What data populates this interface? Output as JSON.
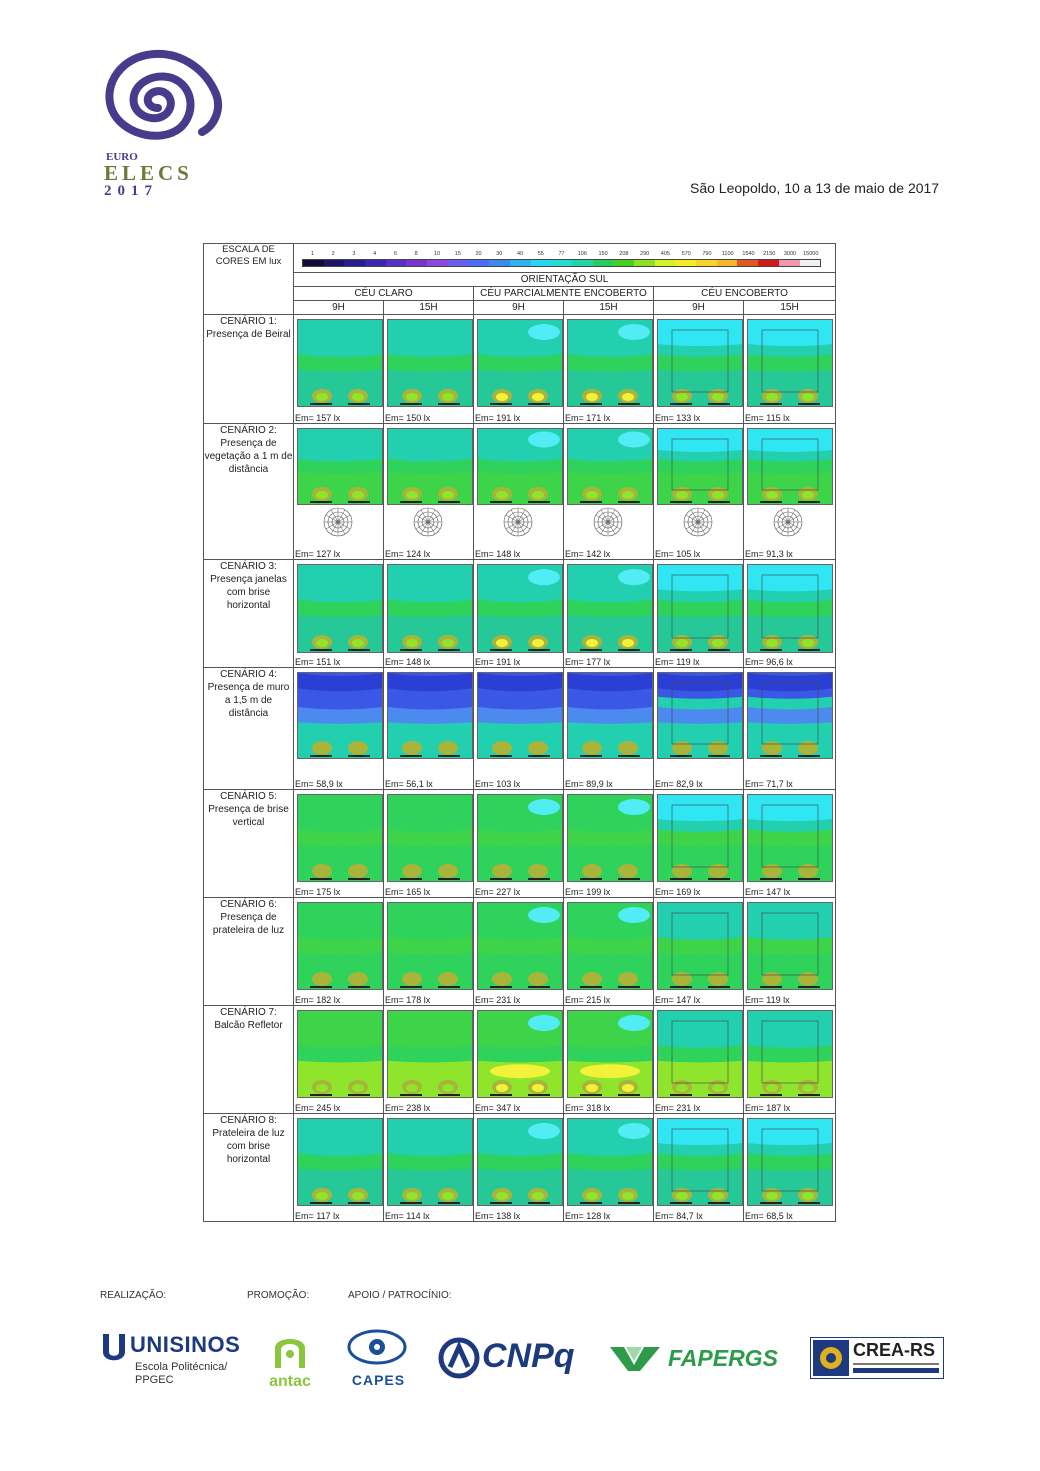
{
  "header": {
    "logo_text_1": "EURO",
    "logo_text_2": "ELECS",
    "logo_text_3": "2017",
    "date": "São Leopoldo, 10 a 13 de maio de 2017"
  },
  "table": {
    "scale_label": "ESCALA DE CORES EM lux",
    "scale_values": [
      "1",
      "2",
      "3",
      "4",
      "6",
      "8",
      "10",
      "15",
      "20",
      "30",
      "40",
      "55",
      "77",
      "106",
      "150",
      "208",
      "290",
      "405",
      "570",
      "790",
      "1100",
      "1540",
      "2150",
      "3000",
      "15000"
    ],
    "scale_colors": [
      "#120c3a",
      "#1f1566",
      "#2a1d8c",
      "#3a27b0",
      "#5a2fc8",
      "#7a35cc",
      "#8a49e0",
      "#6e5cf0",
      "#4c6ef2",
      "#3a8af0",
      "#2fb4f0",
      "#28d8f0",
      "#22ded0",
      "#21d6a8",
      "#26ce60",
      "#46d028",
      "#8ee024",
      "#d4f228",
      "#f4ee28",
      "#f6d428",
      "#f6b82a",
      "#e05824",
      "#d21c1c",
      "#f296b0",
      "#f2eef2"
    ],
    "orientation": "ORIENTAÇÃO SUL",
    "sky_groups": [
      "CÉU CLARO",
      "CÉU PARCIALMENTE ENCOBERTO",
      "CÉU ENCOBERTO"
    ],
    "hours": [
      "9H",
      "15H",
      "9H",
      "15H",
      "9H",
      "15H"
    ],
    "rows": [
      {
        "label": "CENÁRIO 1: Presença de Beiral",
        "em": [
          "Em= 157 lx",
          "Em= 150 lx",
          "Em= 191 lx",
          "Em= 171 lx",
          "Em= 133 lx",
          "Em= 115 lx"
        ]
      },
      {
        "label": "CENÁRIO 2: Presença de vegetação a 1 m de distância",
        "em": [
          "Em= 127 lx",
          "Em= 124 lx",
          "Em= 148 lx",
          "Em= 142 lx",
          "Em= 105 lx",
          "Em= 91,3 lx"
        ]
      },
      {
        "label": "CENÁRIO 3: Presença janelas com brise horizontal",
        "em": [
          "Em= 151 lx",
          "Em= 148 lx",
          "Em= 191 lx",
          "Em= 177 lx",
          "Em= 119 lx",
          "Em= 96,6 lx"
        ]
      },
      {
        "label": "CENÁRIO 4: Presença de muro a 1,5 m de distância",
        "em": [
          "Em= 58,9 lx",
          "Em= 56,1 lx",
          "Em= 103 lx",
          "Em= 89,9 lx",
          "Em= 82,9 lx",
          "Em= 71,7 lx"
        ]
      },
      {
        "label": "CENÁRIO 5: Presença de brise vertical",
        "em": [
          "Em= 175 lx",
          "Em= 165 lx",
          "Em= 227 lx",
          "Em= 199 lx",
          "Em= 169 lx",
          "Em= 147 lx"
        ]
      },
      {
        "label": "CENÁRIO 6: Presença de prateleira de luz",
        "em": [
          "Em= 182 lx",
          "Em= 178 lx",
          "Em= 231 lx",
          "Em= 215 lx",
          "Em= 147 lx",
          "Em= 119 lx"
        ]
      },
      {
        "label": "CENÁRIO 7: Balcão Refletor",
        "em": [
          "Em= 245 lx",
          "Em= 238 lx",
          "Em= 347 lx",
          "Em= 318 lx",
          "Em= 231 lx",
          "Em= 187 lx"
        ]
      },
      {
        "label": "CENÁRIO 8: Prateleira de luz com brise horizontal",
        "em": [
          "Em= 117 lx",
          "Em= 114 lx",
          "Em= 138 lx",
          "Em= 128 lx",
          "Em= 84,7 lx",
          "Em= 68,5 lx"
        ]
      }
    ]
  },
  "footer": {
    "realizacao": "REALIZAÇÃO:",
    "promocao": "PROMOÇÃO:",
    "apoio": "APOIO / PATROCÍNIO:",
    "unisinos": "UNISINOS",
    "unisinos_sub1": "Escola Politécnica/",
    "unisinos_sub2": "PPGEC",
    "antac": "antac",
    "capes": "CAPES",
    "cnpq": "CNPq",
    "fapergs": "FAPERGS",
    "crea": "CREA-RS",
    "colors": {
      "navy": "#1d3a7e",
      "antac_green": "#8cc63f",
      "capes_blue": "#1a4f9c",
      "fapergs_green": "#2e9b4a",
      "logo_purple": "#4a3a8c",
      "logo_olive": "#6a7a3a"
    }
  }
}
